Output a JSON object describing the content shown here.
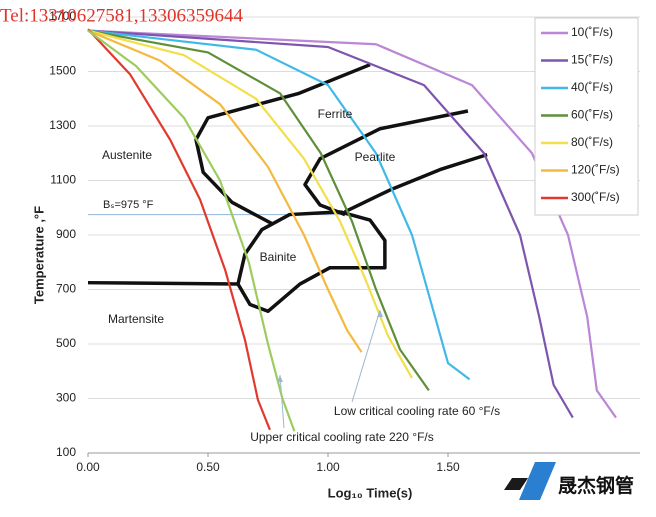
{
  "chart_data": {
    "type": "line",
    "watermark": "Tel:13310627581,13306359644",
    "x_label": "Log₁₀ Time(s)",
    "y_label": "Temperature ,°F",
    "xlim": [
      0,
      2.3
    ],
    "ylim": [
      100,
      1700
    ],
    "xticks": [
      {
        "value": 0,
        "label": "0.00"
      },
      {
        "value": 0.5,
        "label": "0.50"
      },
      {
        "value": 1,
        "label": "1.00"
      },
      {
        "value": 1.5,
        "label": "1.50"
      }
    ],
    "yticks": [
      100,
      300,
      500,
      700,
      900,
      1100,
      1300,
      1500,
      1700
    ],
    "grid": true,
    "legend": "upper right",
    "series": [
      {
        "name": "10(˚F/s)",
        "color": "#bb86d6",
        "x": [
          0,
          1.2,
          1.6,
          1.85,
          2.0,
          2.08,
          2.12,
          2.2
        ],
        "values": [
          1650,
          1600,
          1450,
          1200,
          900,
          600,
          330,
          230
        ]
      },
      {
        "name": "15(˚F/s)",
        "color": "#7d55ae",
        "x": [
          0,
          1.0,
          1.4,
          1.65,
          1.8,
          1.88,
          1.94,
          2.02
        ],
        "values": [
          1650,
          1590,
          1450,
          1200,
          900,
          600,
          350,
          230
        ]
      },
      {
        "name": "40(˚F/s)",
        "color": "#41b9e8",
        "x": [
          0,
          0.7,
          1.0,
          1.2,
          1.35,
          1.43,
          1.5,
          1.59
        ],
        "values": [
          1650,
          1580,
          1450,
          1200,
          900,
          650,
          430,
          370
        ]
      },
      {
        "name": "60(˚F/s)",
        "color": "#5f8f3b",
        "x": [
          0,
          0.5,
          0.8,
          0.97,
          1.1,
          1.2,
          1.3,
          1.42
        ],
        "values": [
          1650,
          1570,
          1420,
          1200,
          950,
          700,
          480,
          330
        ]
      },
      {
        "name": "80(˚F/s)",
        "color": "#f2df4a",
        "x": [
          0,
          0.4,
          0.7,
          0.9,
          1.05,
          1.15,
          1.25,
          1.35
        ],
        "values": [
          1650,
          1560,
          1400,
          1180,
          950,
          750,
          530,
          375
        ]
      },
      {
        "name": "120(˚F/s)",
        "color": "#f4b93e",
        "x": [
          0,
          0.3,
          0.55,
          0.75,
          0.9,
          1.0,
          1.08,
          1.14
        ],
        "values": [
          1650,
          1540,
          1380,
          1150,
          900,
          700,
          550,
          470
        ]
      },
      {
        "name": "300(˚F/s)",
        "color": "#e03a2f",
        "x": [
          0,
          0.175,
          0.342,
          0.467,
          0.571,
          0.654,
          0.708,
          0.758
        ],
        "values": [
          1655,
          1490,
          1250,
          1030,
          773,
          515,
          295,
          185
        ]
      },
      {
        "color": "#9dcc5e",
        "x": [
          0,
          0.2,
          0.4,
          0.55,
          0.67,
          0.75,
          0.81,
          0.86
        ],
        "values": [
          1650,
          1520,
          1330,
          1100,
          800,
          500,
          300,
          180
        ]
      }
    ],
    "boundaries": [
      {
        "x": [
          1.175,
          0.88,
          0.5,
          0.45,
          0.48,
          0.6,
          0.77
        ],
        "values": [
          1525,
          1420,
          1330,
          1250,
          1130,
          1020,
          940
        ]
      },
      {
        "x": [
          1.583,
          1.217,
          0.967,
          0.904,
          0.967,
          1.071
        ],
        "values": [
          1355,
          1290,
          1180,
          1085,
          1010,
          975
        ]
      },
      {
        "x": [
          1.663,
          1.467,
          1.258,
          1.07
        ],
        "values": [
          1195,
          1140,
          1065,
          985
        ]
      },
      {
        "x": [
          1.05,
          0.84,
          0.725,
          0.654,
          0.625,
          0.675,
          0.75,
          0.883,
          1.008,
          1.237,
          1.237,
          1.175,
          1.05
        ],
        "values": [
          985,
          975,
          920,
          830,
          720,
          645,
          620,
          720,
          780,
          780,
          880,
          955,
          985
        ]
      },
      {
        "x": [
          0,
          0.625
        ],
        "values": [
          725,
          720
        ]
      }
    ],
    "bs_value": 975,
    "annotations": [
      "Ferrite",
      "Pearlite",
      "Austenite",
      "Bainite",
      "Martensite",
      "Bₛ=975 °F",
      "Low critical cooling rate 60 °F/s",
      "Upper critical cooling rate 220 °F/s"
    ],
    "logo": "晟杰钢管"
  }
}
